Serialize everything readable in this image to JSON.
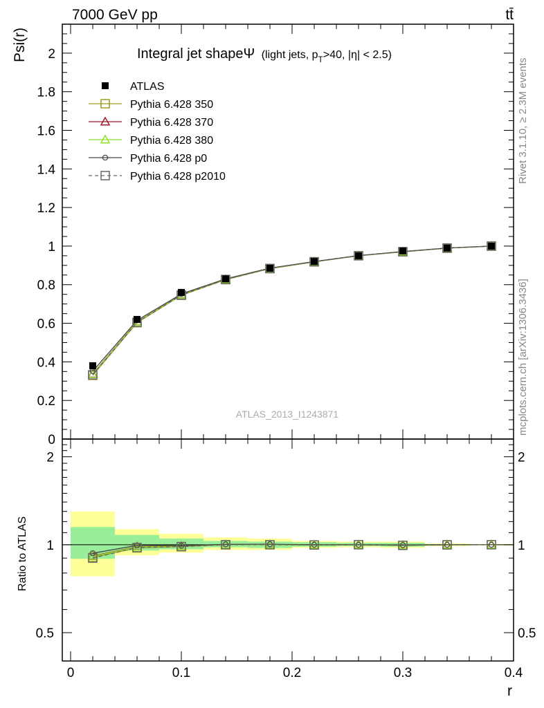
{
  "header": {
    "left": "7000 GeV pp",
    "right": "tt̄"
  },
  "side_labels": {
    "rivet": "Rivet 3.1.10, ≥ 2.3M events",
    "mcplots": "mcplots.cern.ch [arXiv:1306.3436]"
  },
  "watermark": "ATLAS_2013_I1243871",
  "colors": {
    "atlas": "#000000",
    "p350": "#9a9a20",
    "p370": "#9b1c2a",
    "p380": "#8fe02a",
    "p0": "#444444",
    "p2010": "#666666",
    "band_outer": "#ffff99",
    "band_inner": "#99ee99"
  },
  "chart_data": [
    {
      "type": "line",
      "title_main": "Integral jet shape",
      "title_symbol": "Ψ",
      "title_sub": "(light jets, p",
      "title_sub_T": "T",
      "title_sub_rest": ">40, |η| < 2.5)",
      "ylabel": "Psi(r)",
      "xlim": [
        -0.0075,
        0.4
      ],
      "ylim": [
        0,
        2.15
      ],
      "y_ticks": [
        "0",
        "0.2",
        "0.4",
        "0.6",
        "0.8",
        "1",
        "1.2",
        "1.4",
        "1.6",
        "1.8",
        "2"
      ],
      "y_tick_values": [
        0,
        0.2,
        0.4,
        0.6,
        0.8,
        1.0,
        1.2,
        1.4,
        1.6,
        1.8,
        2.0
      ],
      "x": [
        0.02,
        0.06,
        0.1,
        0.14,
        0.18,
        0.22,
        0.26,
        0.3,
        0.34,
        0.38
      ],
      "series": [
        {
          "name": "ATLAS",
          "key": "atlas",
          "marker": "filled-square",
          "values": [
            0.38,
            0.62,
            0.76,
            0.83,
            0.885,
            0.92,
            0.95,
            0.975,
            0.99,
            1.0
          ]
        },
        {
          "name": "Pythia 6.428 350",
          "key": "p350",
          "marker": "open-square",
          "dash": "solid",
          "values": [
            0.33,
            0.603,
            0.745,
            0.826,
            0.883,
            0.918,
            0.95,
            0.97,
            0.989,
            1.0
          ]
        },
        {
          "name": "Pythia 6.428 370",
          "key": "p370",
          "marker": "open-triangle",
          "dash": "solid",
          "values": [
            0.338,
            0.608,
            0.748,
            0.828,
            0.884,
            0.919,
            0.95,
            0.971,
            0.99,
            1.0
          ]
        },
        {
          "name": "Pythia 6.428 380",
          "key": "p380",
          "marker": "open-triangle",
          "dash": "solid",
          "values": [
            0.336,
            0.607,
            0.747,
            0.828,
            0.884,
            0.919,
            0.95,
            0.971,
            0.99,
            1.0
          ]
        },
        {
          "name": "Pythia 6.428 p0",
          "key": "p0",
          "marker": "open-circle",
          "dash": "solid",
          "values": [
            0.352,
            0.615,
            0.752,
            0.83,
            0.886,
            0.92,
            0.951,
            0.972,
            0.99,
            1.0
          ]
        },
        {
          "name": "Pythia 6.428 p2010",
          "key": "p2010",
          "marker": "open-square",
          "dash": "dashed",
          "values": [
            0.333,
            0.605,
            0.746,
            0.827,
            0.884,
            0.919,
            0.95,
            0.971,
            0.99,
            1.0
          ]
        }
      ]
    },
    {
      "type": "line",
      "ylabel": "Ratio to ATLAS",
      "xlabel": "r",
      "log_y": true,
      "ylim": [
        0.4,
        2.3
      ],
      "y_ticks": [
        "0.5",
        "1",
        "2"
      ],
      "y_tick_values": [
        0.5,
        1.0,
        2.0
      ],
      "xlim": [
        -0.0075,
        0.4
      ],
      "x_ticks": [
        "0",
        "0.1",
        "0.2",
        "0.3",
        "0.4"
      ],
      "x_tick_values": [
        0,
        0.1,
        0.2,
        0.3,
        0.4
      ],
      "bin_edges": [
        0,
        0.04,
        0.08,
        0.12,
        0.16,
        0.2,
        0.24,
        0.28,
        0.32,
        0.36,
        0.4
      ],
      "band_outer": [
        [
          0.78,
          1.3
        ],
        [
          0.92,
          1.13
        ],
        [
          0.94,
          1.09
        ],
        [
          0.96,
          1.06
        ],
        [
          0.96,
          1.05
        ],
        [
          0.975,
          1.03
        ],
        [
          0.98,
          1.025
        ],
        [
          0.975,
          1.025
        ],
        [
          0.99,
          1.01
        ],
        [
          0.995,
          1.005
        ]
      ],
      "band_inner": [
        [
          0.895,
          1.15
        ],
        [
          0.955,
          1.08
        ],
        [
          0.965,
          1.05
        ],
        [
          0.98,
          1.03
        ],
        [
          0.975,
          1.025
        ],
        [
          0.985,
          1.02
        ],
        [
          0.99,
          1.015
        ],
        [
          0.985,
          1.015
        ],
        [
          0.995,
          1.005
        ],
        [
          0.998,
          1.002
        ]
      ],
      "series": [
        {
          "name": "Pythia 6.428 350",
          "key": "p350",
          "marker": "open-square",
          "dash": "solid",
          "values": [
            0.905,
            0.975,
            0.985,
            1.0,
            1.0,
            0.998,
            1.0,
            0.995,
            0.999,
            1.0
          ]
        },
        {
          "name": "Pythia 6.428 370",
          "key": "p370",
          "marker": "open-triangle",
          "dash": "solid",
          "values": [
            0.915,
            0.985,
            0.99,
            1.0,
            1.002,
            0.999,
            1.0,
            0.996,
            1.0,
            1.0
          ]
        },
        {
          "name": "Pythia 6.428 380",
          "key": "p380",
          "marker": "open-triangle",
          "dash": "solid",
          "values": [
            0.912,
            0.983,
            0.989,
            1.0,
            1.001,
            0.999,
            1.0,
            0.996,
            1.0,
            1.0
          ]
        },
        {
          "name": "Pythia 6.428 p0",
          "key": "p0",
          "marker": "open-circle",
          "dash": "solid",
          "values": [
            0.935,
            0.995,
            0.992,
            1.003,
            1.004,
            1.0,
            1.0,
            0.997,
            1.0,
            1.0
          ]
        },
        {
          "name": "Pythia 6.428 p2010",
          "key": "p2010",
          "marker": "open-square",
          "dash": "dashed",
          "values": [
            0.9,
            0.978,
            0.985,
            1.0,
            1.0,
            0.998,
            1.0,
            0.995,
            0.999,
            1.0
          ]
        }
      ]
    }
  ]
}
